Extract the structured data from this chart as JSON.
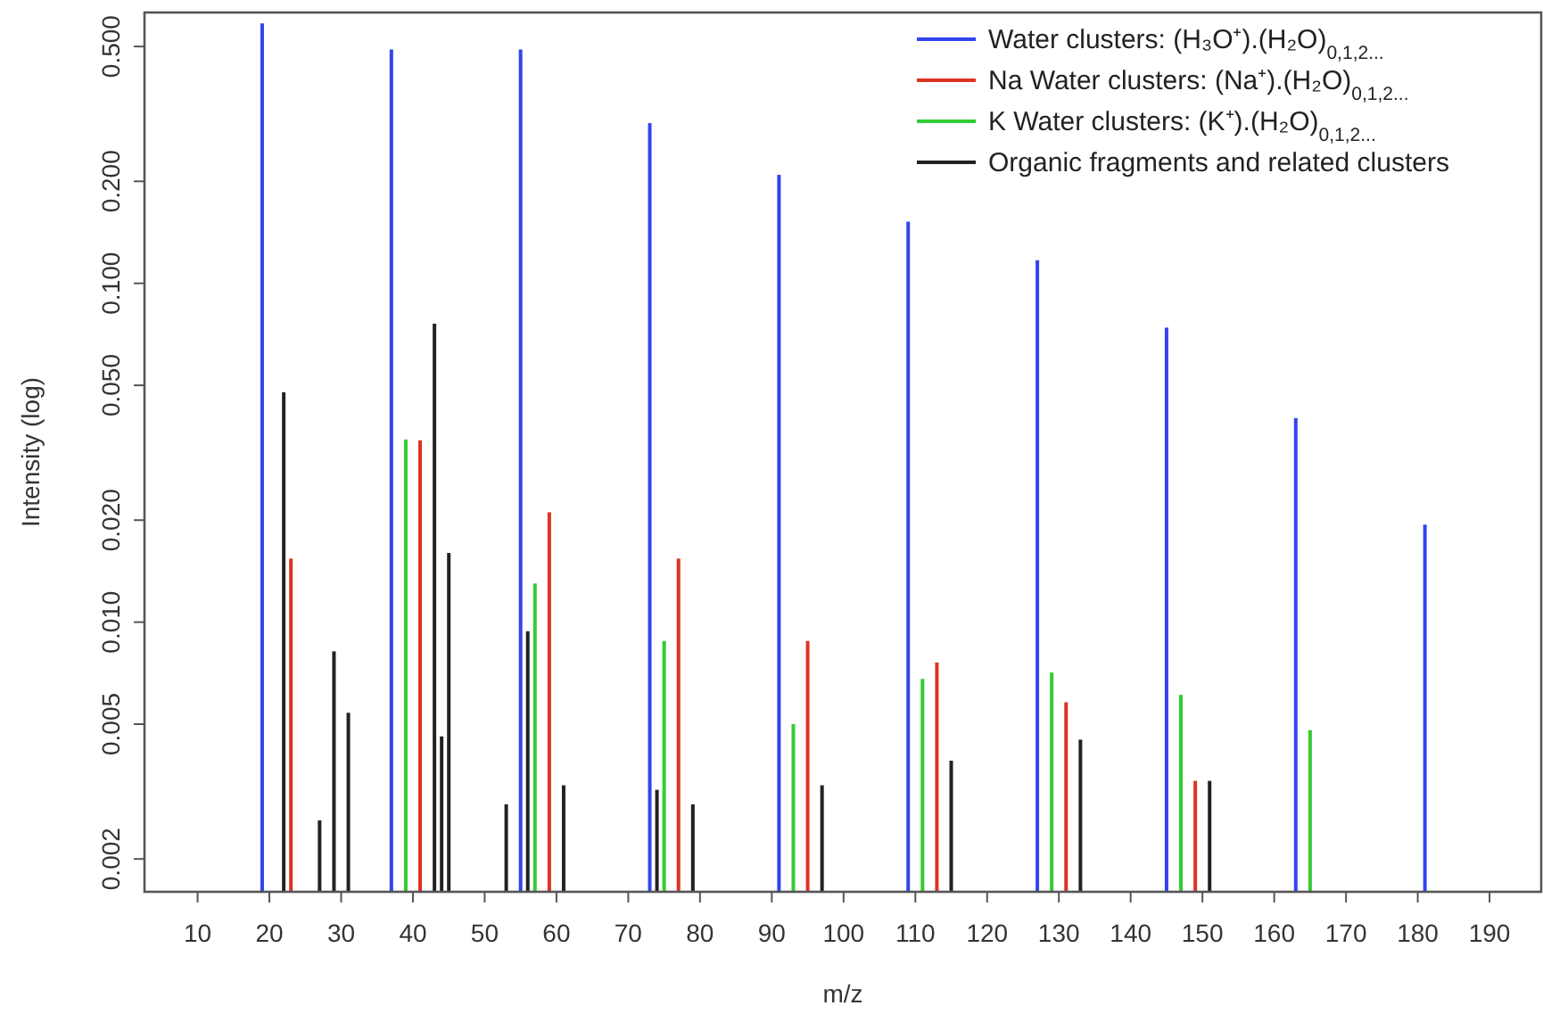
{
  "chart_data": {
    "type": "bar",
    "xlabel": "m/z",
    "ylabel": "Intensity (log)",
    "log": "y",
    "grid": false,
    "legend": "top right",
    "xlim": [
      2.6,
      197.2
    ],
    "xticks": [
      10,
      20,
      30,
      40,
      50,
      60,
      70,
      80,
      90,
      100,
      110,
      120,
      130,
      140,
      150,
      160,
      170,
      180,
      190
    ],
    "ylim": [
      0.0016,
      0.63
    ],
    "yticks": [
      {
        "value": 0.002,
        "label": "0.002"
      },
      {
        "value": 0.005,
        "label": "0.005"
      },
      {
        "value": 0.01,
        "label": "0.010"
      },
      {
        "value": 0.02,
        "label": "0.020"
      },
      {
        "value": 0.05,
        "label": "0.050"
      },
      {
        "value": 0.1,
        "label": "0.100"
      },
      {
        "value": 0.2,
        "label": "0.200"
      },
      {
        "value": 0.5,
        "label": "0.500"
      }
    ],
    "series": [
      {
        "name": "Water clusters: (H₃O⁺).(H₂O)$_{0,1,2...}$",
        "color": "#3344ee",
        "x": [
          19,
          37,
          55,
          73,
          91,
          109,
          127,
          145,
          163,
          181
        ],
        "values": [
          0.585,
          0.49,
          0.49,
          0.297,
          0.209,
          0.152,
          0.117,
          0.074,
          0.04,
          0.0194
        ]
      },
      {
        "name": "Na Water clusters: (Na⁺).(H₂O)$_{0,1,2...}$",
        "color": "#dd3322",
        "x": [
          23,
          41,
          59,
          77,
          95,
          113,
          131,
          149
        ],
        "values": [
          0.0154,
          0.0344,
          0.0211,
          0.0154,
          0.0088,
          0.0076,
          0.0058,
          0.0034
        ]
      },
      {
        "name": "K Water clusters: (K⁺).(H₂O)$_{0,1,2...}$",
        "color": "#33cc33",
        "x": [
          39,
          57,
          75,
          93,
          111,
          129,
          147,
          165
        ],
        "values": [
          0.0346,
          0.013,
          0.0088,
          0.005,
          0.0068,
          0.0071,
          0.0061,
          0.0048
        ]
      },
      {
        "name": "Organic fragments and related clusters",
        "color": "#222222",
        "x": [
          22,
          27,
          29,
          31,
          43,
          44,
          45,
          53,
          56,
          61,
          74,
          79,
          97,
          115,
          133,
          151
        ],
        "values": [
          0.0477,
          0.0026,
          0.0082,
          0.0054,
          0.076,
          0.0046,
          0.016,
          0.0029,
          0.0094,
          0.0033,
          0.0032,
          0.0029,
          0.0033,
          0.0039,
          0.0045,
          0.0034
        ]
      }
    ]
  }
}
